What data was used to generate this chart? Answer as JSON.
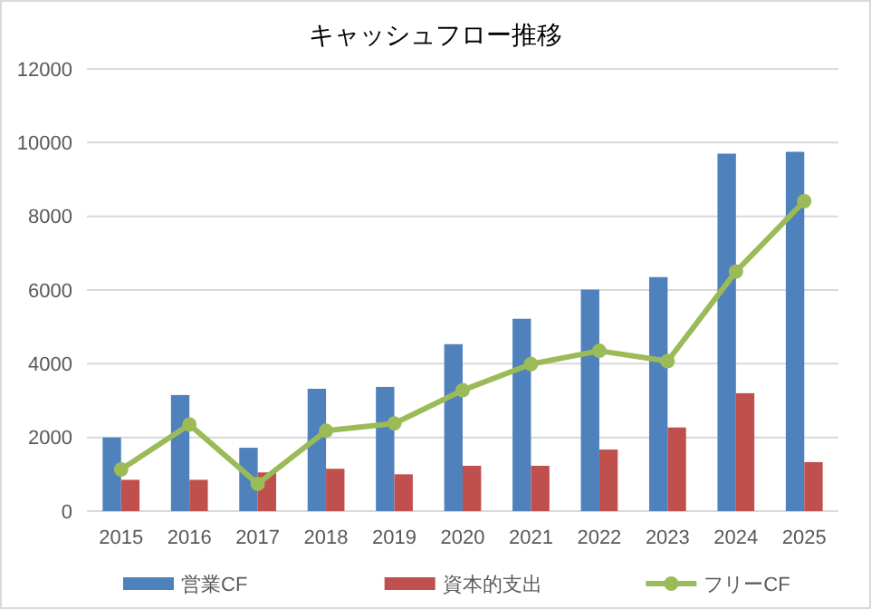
{
  "chart_data": {
    "type": "bar",
    "title": "キャッシュフロー推移",
    "categories": [
      "2015",
      "2016",
      "2017",
      "2018",
      "2019",
      "2020",
      "2021",
      "2022",
      "2023",
      "2024",
      "2025"
    ],
    "series": [
      {
        "name": "営業CF",
        "color": "#4f81bd",
        "values": [
          2000,
          3150,
          1720,
          3320,
          3370,
          4530,
          5220,
          6010,
          6350,
          9700,
          9750
        ]
      },
      {
        "name": "資本的支出",
        "color": "#c0504d",
        "values": [
          850,
          850,
          1050,
          1150,
          1000,
          1230,
          1230,
          1670,
          2270,
          3200,
          1330
        ]
      },
      {
        "name": "フリーCF",
        "type": "line",
        "color": "#9bbb59",
        "marker": "circle",
        "values": [
          1130,
          2350,
          740,
          2180,
          2380,
          3280,
          3990,
          4350,
          4070,
          6500,
          8410
        ]
      }
    ],
    "ylim": [
      0,
      12000
    ],
    "yticks": [
      0,
      2000,
      4000,
      6000,
      8000,
      10000,
      12000
    ],
    "grid": "y",
    "legend": "bottom"
  }
}
